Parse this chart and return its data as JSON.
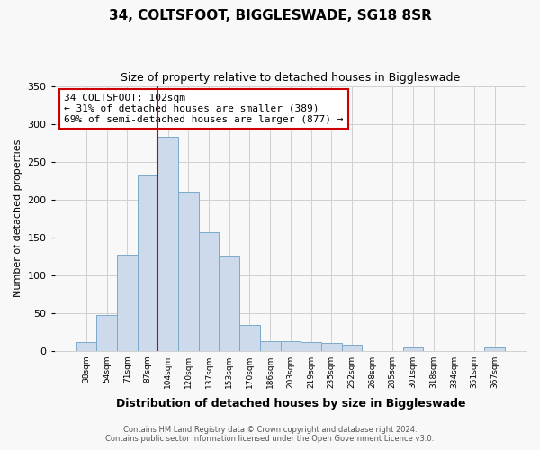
{
  "title1": "34, COLTSFOOT, BIGGLESWADE, SG18 8SR",
  "title2": "Size of property relative to detached houses in Biggleswade",
  "xlabel": "Distribution of detached houses by size in Biggleswade",
  "ylabel": "Number of detached properties",
  "bar_labels": [
    "38sqm",
    "54sqm",
    "71sqm",
    "87sqm",
    "104sqm",
    "120sqm",
    "137sqm",
    "153sqm",
    "170sqm",
    "186sqm",
    "203sqm",
    "219sqm",
    "235sqm",
    "252sqm",
    "268sqm",
    "285sqm",
    "301sqm",
    "318sqm",
    "334sqm",
    "351sqm",
    "367sqm"
  ],
  "bar_values": [
    12,
    47,
    127,
    232,
    283,
    210,
    157,
    126,
    34,
    13,
    13,
    11,
    10,
    8,
    0,
    0,
    4,
    0,
    0,
    0,
    4
  ],
  "bar_color": "#ccdaeb",
  "bar_edge_color": "#7aaac8",
  "vline_color": "#cc0000",
  "annotation_text": "34 COLTSFOOT: 102sqm\n← 31% of detached houses are smaller (389)\n69% of semi-detached houses are larger (877) →",
  "annotation_box_edge": "#cc0000",
  "annotation_box_face": "white",
  "ylim": [
    0,
    350
  ],
  "yticks": [
    0,
    50,
    100,
    150,
    200,
    250,
    300,
    350
  ],
  "footer1": "Contains HM Land Registry data © Crown copyright and database right 2024.",
  "footer2": "Contains public sector information licensed under the Open Government Licence v3.0.",
  "background_color": "#f8f8f8",
  "grid_color": "#d0d0d0"
}
